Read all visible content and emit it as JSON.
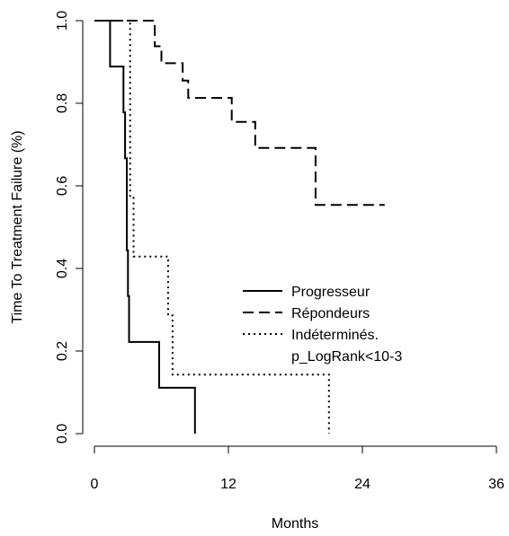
{
  "chart_data": {
    "type": "line",
    "subtype": "step (Kaplan-Meier)",
    "xlabel": "Months",
    "ylabel": "Time To Treatment Failure (%)",
    "xlim": [
      0,
      36
    ],
    "ylim": [
      0,
      1
    ],
    "xticks": [
      0,
      12,
      24,
      36
    ],
    "yticks": [
      0.0,
      0.2,
      0.4,
      0.6,
      0.8,
      1.0
    ],
    "xtick_labels": [
      "0",
      "12",
      "24",
      "36"
    ],
    "ytick_labels": [
      "0.0",
      "0.2",
      "0.4",
      "0.6",
      "0.8",
      "1.0"
    ],
    "grid": false,
    "legend_position": "center-right",
    "series": [
      {
        "name": "Progresseur",
        "line_style": "solid",
        "color": "#000000",
        "points": [
          [
            0.0,
            1.0
          ],
          [
            1.4,
            1.0
          ],
          [
            1.4,
            0.889
          ],
          [
            2.6,
            0.889
          ],
          [
            2.6,
            0.778
          ],
          [
            2.75,
            0.778
          ],
          [
            2.75,
            0.667
          ],
          [
            2.9,
            0.667
          ],
          [
            2.9,
            0.444
          ],
          [
            3.0,
            0.444
          ],
          [
            3.0,
            0.333
          ],
          [
            3.1,
            0.333
          ],
          [
            3.1,
            0.222
          ],
          [
            5.8,
            0.222
          ],
          [
            5.8,
            0.111
          ],
          [
            9.0,
            0.111
          ],
          [
            9.0,
            0.0
          ]
        ]
      },
      {
        "name": "Répondeurs",
        "line_style": "dashed",
        "color": "#000000",
        "points": [
          [
            0.0,
            1.0
          ],
          [
            5.4,
            1.0
          ],
          [
            5.4,
            0.938
          ],
          [
            6.0,
            0.938
          ],
          [
            6.0,
            0.897
          ],
          [
            7.9,
            0.897
          ],
          [
            7.9,
            0.855
          ],
          [
            8.4,
            0.855
          ],
          [
            8.4,
            0.813
          ],
          [
            12.3,
            0.813
          ],
          [
            12.3,
            0.755
          ],
          [
            14.4,
            0.755
          ],
          [
            14.4,
            0.692
          ],
          [
            19.8,
            0.692
          ],
          [
            19.8,
            0.554
          ],
          [
            26.0,
            0.554
          ]
        ]
      },
      {
        "name": "Indéterminés.",
        "line_style": "dotted",
        "color": "#000000",
        "points": [
          [
            0.0,
            1.0
          ],
          [
            3.2,
            1.0
          ],
          [
            3.2,
            0.571
          ],
          [
            3.5,
            0.571
          ],
          [
            3.5,
            0.429
          ],
          [
            6.6,
            0.429
          ],
          [
            6.6,
            0.286
          ],
          [
            7.0,
            0.286
          ],
          [
            7.0,
            0.143
          ],
          [
            21.0,
            0.143
          ],
          [
            21.0,
            0.0
          ]
        ]
      }
    ],
    "legend_entries": [
      "Progresseur",
      "Répondeurs",
      "Indéterminés.",
      "p_LogRank<10-3"
    ]
  }
}
